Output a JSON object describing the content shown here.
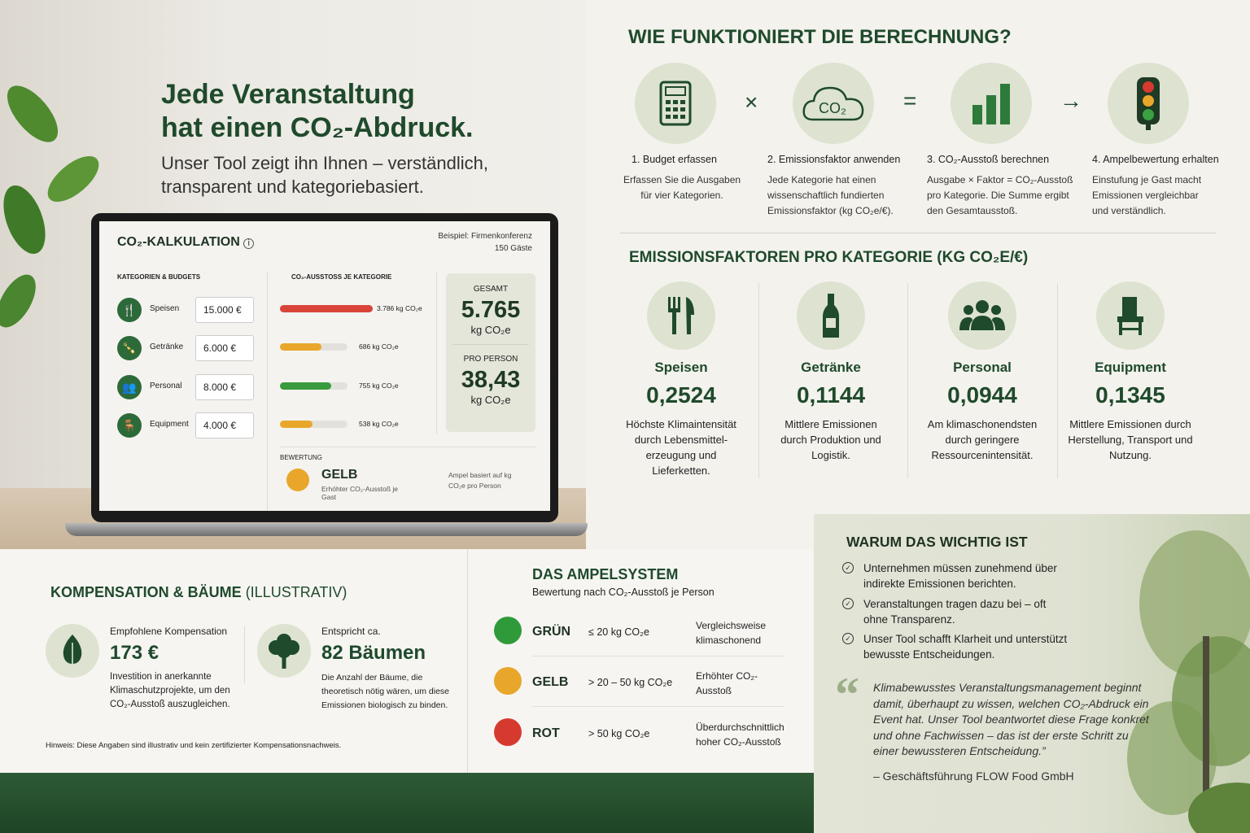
{
  "hero": {
    "headline_1": "Jede Veranstaltung",
    "headline_2": "hat einen CO₂-Abdruck.",
    "subline": "Unser Tool zeigt ihn Ihnen – verständlich, transparent und kategoriebasiert."
  },
  "calculator": {
    "title": "CO₂-KALKULATION",
    "info_icon": "info-icon",
    "example_1": "Beispiel: Firmenkonferenz",
    "example_2": "150 Gäste",
    "col_budgets": "KATEGORIEN & BUDGETS",
    "col_emissions": "CO₂-AUSSTOSS JE KATEGORIE",
    "rows": [
      {
        "label": "Speisen",
        "budget": "15.000 €",
        "emission": "3.786 kg CO₂e",
        "fill": 1.0,
        "color": "#d9443a",
        "icon": "cutlery-icon"
      },
      {
        "label": "Getränke",
        "budget": "6.000 €",
        "emission": "686 kg CO₂e",
        "fill": 0.45,
        "color": "#e8a72a",
        "icon": "bottle-icon"
      },
      {
        "label": "Personal",
        "budget": "8.000 €",
        "emission": "755 kg CO₂e",
        "fill": 0.55,
        "color": "#3a9a3e",
        "icon": "people-icon"
      },
      {
        "label": "Equipment",
        "budget": "4.000 €",
        "emission": "538 kg CO₂e",
        "fill": 0.35,
        "color": "#e8a72a",
        "icon": "chair-icon"
      }
    ],
    "gesamt_label": "GESAMT",
    "gesamt_value": "5.765",
    "unit": "kg CO₂e",
    "pro_person_label": "PRO PERSON",
    "pro_person_value": "38,43",
    "rating_label": "BEWERTUNG",
    "rating_value": "GELB",
    "rating_desc": "Erhöhter CO₂-Ausstoß je Gast",
    "rating_color": "#e8a72a",
    "rating_note": "Ampel basiert auf kg CO₂e pro Person"
  },
  "how": {
    "title": "WIE FUNKTIONIERT DIE BERECHNUNG?",
    "operators": [
      "×",
      "=",
      "→"
    ],
    "steps": [
      {
        "title": "1. Budget erfassen",
        "desc": "Erfassen Sie die Ausgaben für vier Kategorien.",
        "icon": "calculator-icon"
      },
      {
        "title": "2. Emissionsfaktor anwenden",
        "desc": "Jede Kategorie hat einen wissenschaftlich fundierten Emissionsfaktor (kg CO₂e/€).",
        "icon": "co2-cloud-icon",
        "icon_text": "CO₂"
      },
      {
        "title": "3. CO₂-Ausstoß berechnen",
        "desc": "Ausgabe × Faktor = CO₂-Ausstoß pro Kategorie. Die Summe ergibt den Gesamtausstoß.",
        "icon": "bar-chart-icon"
      },
      {
        "title": "4. Ampelbewertung erhalten",
        "desc": "Einstufung je Gast macht Emissionen vergleichbar und verständlich.",
        "icon": "traffic-light-icon"
      }
    ]
  },
  "factors": {
    "title": "EMISSIONSFAKTOREN PRO KATEGORIE (KG CO₂E/€)",
    "items": [
      {
        "name": "Speisen",
        "value": "0,2524",
        "desc": "Höchste Klimaintensität durch Lebensmittel-erzeugung und Lieferketten.",
        "icon": "cutlery-icon"
      },
      {
        "name": "Getränke",
        "value": "0,1144",
        "desc": "Mittlere Emissionen durch Produktion und Logistik.",
        "icon": "bottle-icon"
      },
      {
        "name": "Personal",
        "value": "0,0944",
        "desc": "Am klimaschonendsten durch geringere Ressourcenintensität.",
        "icon": "people-icon"
      },
      {
        "name": "Equipment",
        "value": "0,1345",
        "desc": "Mittlere Emissionen durch Herstellung, Transport und Nutzung.",
        "icon": "chair-icon"
      }
    ]
  },
  "compensation": {
    "title": "KOMPENSATION & BÄUME",
    "title_suffix": "(ILLUSTRATIV)",
    "left_label": "Empfohlene Kompensation",
    "left_value": "173 €",
    "left_desc": "Investition in anerkannte Klimaschutzprojekte, um den CO₂-Ausstoß auszugleichen.",
    "right_label": "Entspricht ca.",
    "right_value": "82 Bäumen",
    "right_desc": "Die Anzahl der Bäume, die theoretisch nötig wären, um diese Emissionen biologisch zu binden.",
    "note": "Hinweis: Diese Angaben sind illustrativ und kein zertifizierter Kompensationsnachweis."
  },
  "ampel": {
    "title": "DAS AMPELSYSTEM",
    "subtitle": "Bewertung nach CO₂-Ausstoß je Person",
    "rows": [
      {
        "label": "GRÜN",
        "range": "≤ 20 kg CO₂e",
        "desc": "Vergleichsweise klimaschonend",
        "color": "#2f9a3a"
      },
      {
        "label": "GELB",
        "range": "> 20 – 50 kg CO₂e",
        "desc": "Erhöhter CO₂-Ausstoß",
        "color": "#e8a72a"
      },
      {
        "label": "ROT",
        "range": "> 50 kg CO₂e",
        "desc": "Überdurchschnittlich hoher CO₂-Ausstoß",
        "color": "#d63a2f"
      }
    ]
  },
  "why": {
    "title": "WARUM DAS WICHTIG IST",
    "points": [
      "Unternehmen müssen zunehmend über indirekte Emissionen berichten.",
      "Veranstaltungen tragen dazu bei – oft ohne Transparenz.",
      "Unser Tool schafft Klarheit und unterstützt bewusste Entscheidungen."
    ],
    "quote": "Klimabewusstes Veranstaltungsmanagement beginnt damit, überhaupt zu wissen, welchen CO₂-Abdruck ein Event hat. Unser Tool beantwortet diese Frage konkret und ohne Fachwissen – das ist der erste Schritt zu einer bewussteren Entscheidung.”",
    "author": "– Geschäftsführung FLOW Food GmbH"
  },
  "colors": {
    "brand_green": "#1f4a2c",
    "accent_green": "#2d6a3a",
    "circle_bg": "#dde3d0"
  }
}
